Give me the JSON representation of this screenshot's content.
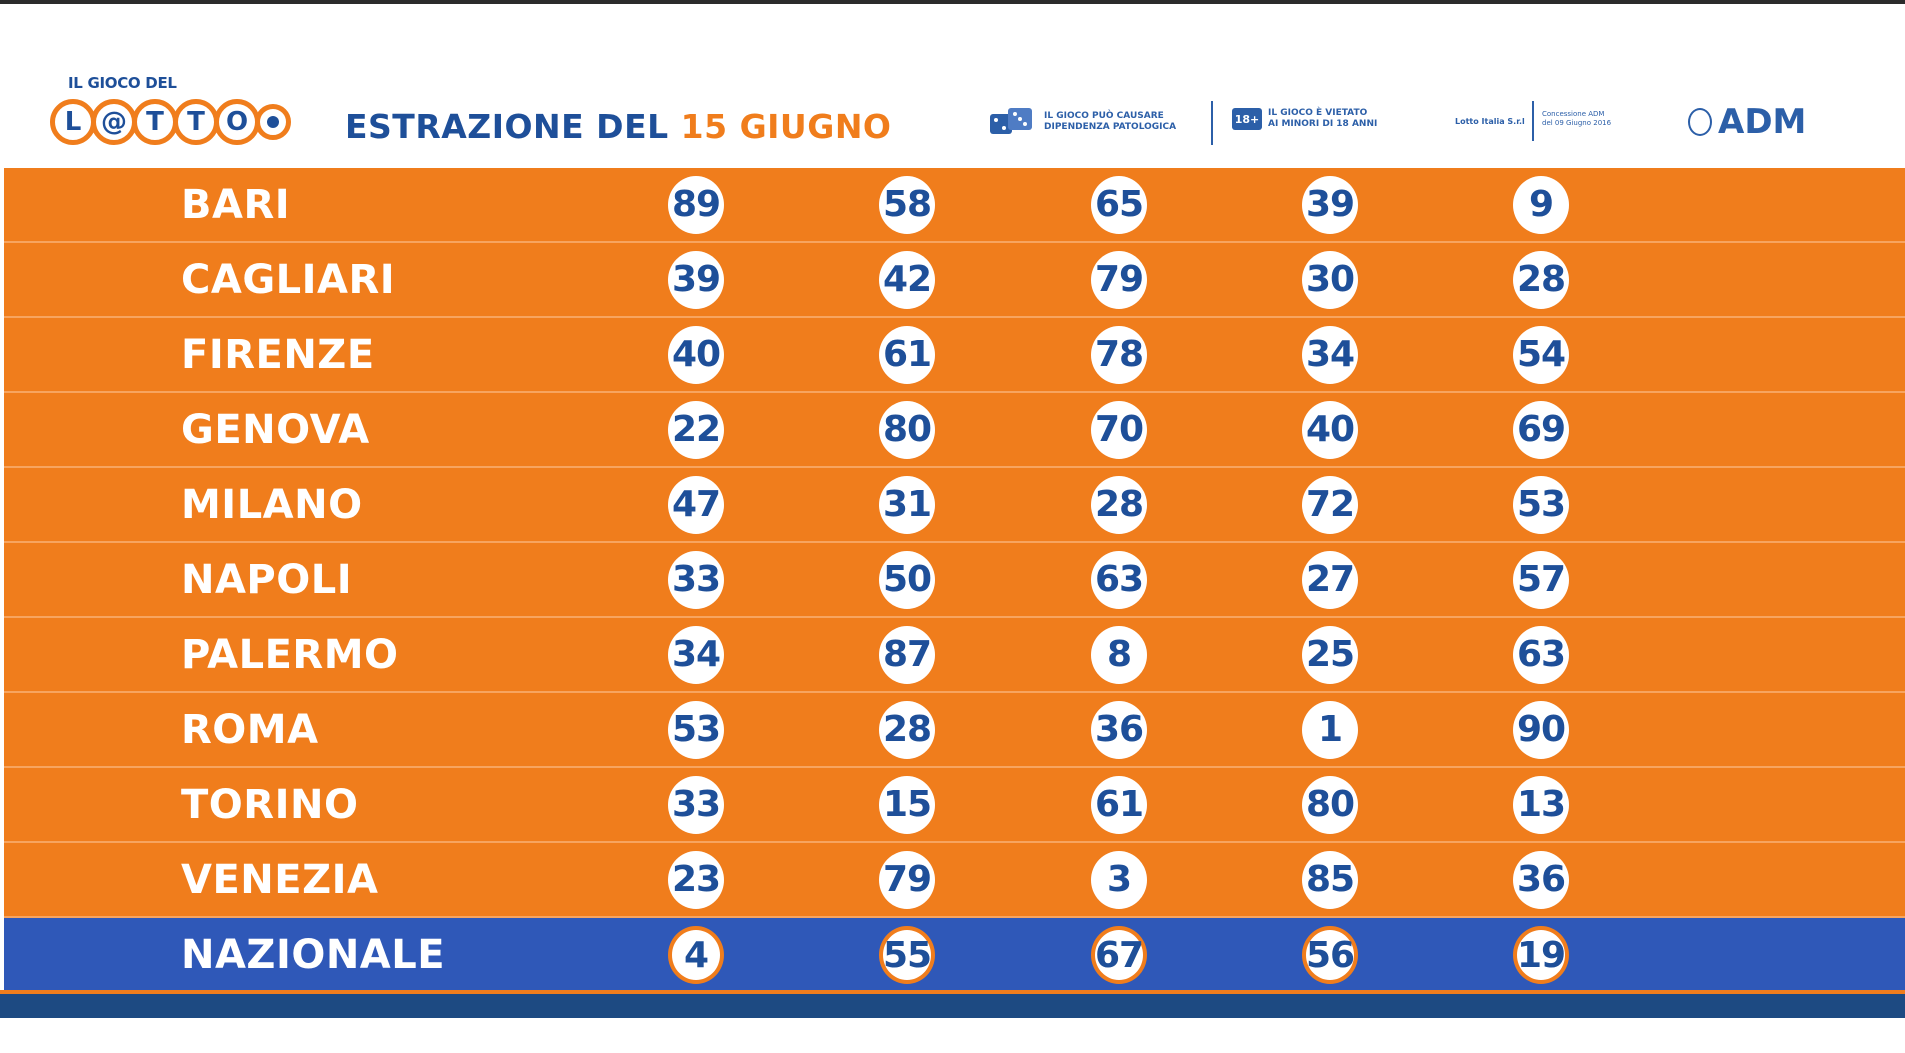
{
  "logo": {
    "top_text": "IL GIOCO DEL",
    "letters": [
      "L",
      "@",
      "T",
      "T",
      "O"
    ]
  },
  "header": {
    "title_prefix": "ESTRAZIONE DEL",
    "title_date": "15 GIUGNO",
    "notice_addiction_line1": "IL GIOCO PUÒ CAUSARE",
    "notice_addiction_line2": "DIPENDENZA PATOLOGICA",
    "age_badge": "18+",
    "notice_minors_line1": "IL GIOCO È VIETATO",
    "notice_minors_line2": "AI MINORI DI 18 ANNI",
    "operator_text": "Lotto Italia S.r.l",
    "concession_line1": "Concessione ADM",
    "concession_line2": "del 09 Giugno 2016",
    "regulator": "ADM"
  },
  "colors": {
    "row_orange": "#f07d1c",
    "nazionale_blue": "#2f58b8",
    "number_blue": "#1e4f99",
    "footer_blue": "#1d4a82"
  },
  "draws": [
    {
      "wheel": "BARI",
      "numbers": [
        "89",
        "58",
        "65",
        "39",
        "9"
      ]
    },
    {
      "wheel": "CAGLIARI",
      "numbers": [
        "39",
        "42",
        "79",
        "30",
        "28"
      ]
    },
    {
      "wheel": "FIRENZE",
      "numbers": [
        "40",
        "61",
        "78",
        "34",
        "54"
      ]
    },
    {
      "wheel": "GENOVA",
      "numbers": [
        "22",
        "80",
        "70",
        "40",
        "69"
      ]
    },
    {
      "wheel": "MILANO",
      "numbers": [
        "47",
        "31",
        "28",
        "72",
        "53"
      ]
    },
    {
      "wheel": "NAPOLI",
      "numbers": [
        "33",
        "50",
        "63",
        "27",
        "57"
      ]
    },
    {
      "wheel": "PALERMO",
      "numbers": [
        "34",
        "87",
        "8",
        "25",
        "63"
      ]
    },
    {
      "wheel": "ROMA",
      "numbers": [
        "53",
        "28",
        "36",
        "1",
        "90"
      ]
    },
    {
      "wheel": "TORINO",
      "numbers": [
        "33",
        "15",
        "61",
        "80",
        "13"
      ]
    },
    {
      "wheel": "VENEZIA",
      "numbers": [
        "23",
        "79",
        "3",
        "85",
        "36"
      ]
    },
    {
      "wheel": "NAZIONALE",
      "numbers": [
        "4",
        "55",
        "67",
        "56",
        "19"
      ]
    }
  ]
}
